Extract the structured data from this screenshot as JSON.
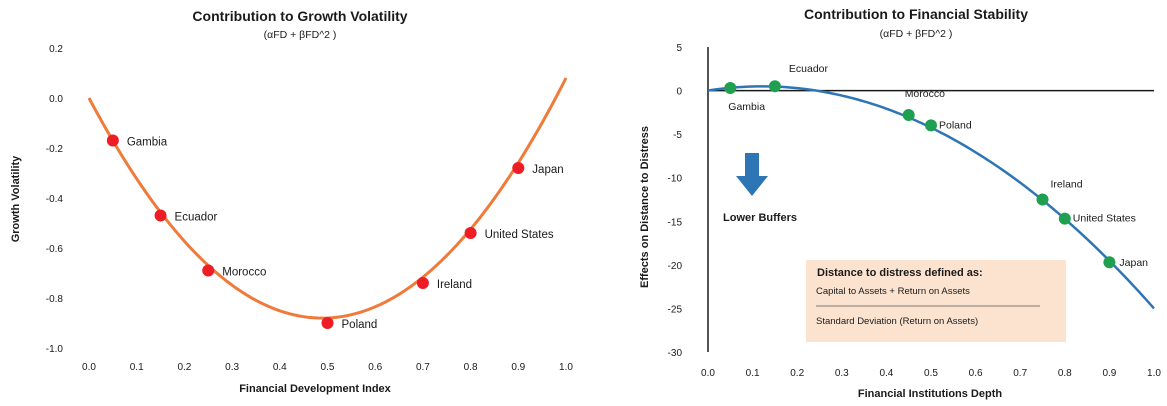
{
  "chart_data": [
    {
      "type": "line",
      "title": "Contribution to Growth Volatility",
      "subtitle": "(αFD + βFD^2 )",
      "xlabel": "Financial Development Index",
      "ylabel": "Growth Volatility",
      "xlim": [
        0.0,
        1.0
      ],
      "ylim": [
        -1.0,
        0.2
      ],
      "x_ticks": [
        "0.0",
        "0.1",
        "0.2",
        "0.3",
        "0.4",
        "0.5",
        "0.6",
        "0.7",
        "0.8",
        "0.9",
        "1.0"
      ],
      "y_ticks": [
        "-1.0",
        "-0.8",
        "-0.6",
        "-0.4",
        "-0.2",
        "0.0",
        "0.2"
      ],
      "line_color": "#f07a3a",
      "marker_color": "#ee1c25",
      "curve": {
        "a": -3.6,
        "b": 3.68
      },
      "points": [
        {
          "label": "Gambia",
          "x": 0.05,
          "y": -0.17
        },
        {
          "label": "Ecuador",
          "x": 0.15,
          "y": -0.47
        },
        {
          "label": "Morocco",
          "x": 0.25,
          "y": -0.69
        },
        {
          "label": "Poland",
          "x": 0.5,
          "y": -0.9
        },
        {
          "label": "Ireland",
          "x": 0.7,
          "y": -0.74
        },
        {
          "label": "United States",
          "x": 0.8,
          "y": -0.54
        },
        {
          "label": "Japan",
          "x": 0.9,
          "y": -0.28
        }
      ]
    },
    {
      "type": "line",
      "title": "Contribution to Financial Stability",
      "subtitle": "(αFD + βFD^2 )",
      "xlabel": "Financial Institutions Depth",
      "ylabel": "Effects on Distance to Distress",
      "xlim": [
        0.0,
        1.0
      ],
      "ylim": [
        -30,
        5
      ],
      "x_ticks": [
        "0.0",
        "0.1",
        "0.2",
        "0.3",
        "0.4",
        "0.5",
        "0.6",
        "0.7",
        "0.8",
        "0.9",
        "1.0"
      ],
      "y_ticks": [
        "-30",
        "-25",
        "-20",
        "-15",
        "-10",
        "-5",
        "0",
        "5"
      ],
      "line_color": "#2e75b6",
      "marker_color": "#1fa050",
      "curve": {
        "a": 8.0,
        "b": -33.0
      },
      "points": [
        {
          "label": "Gambia",
          "x": 0.05,
          "y": 0.3
        },
        {
          "label": "Ecuador",
          "x": 0.15,
          "y": 0.5
        },
        {
          "label": "Morocco",
          "x": 0.45,
          "y": -2.8
        },
        {
          "label": "Poland",
          "x": 0.5,
          "y": -4.0
        },
        {
          "label": "Ireland",
          "x": 0.75,
          "y": -12.5
        },
        {
          "label": "United States",
          "x": 0.8,
          "y": -14.7
        },
        {
          "label": "Japan",
          "x": 0.9,
          "y": -19.7
        }
      ],
      "annotations": {
        "arrow_label": "Lower Buffers",
        "arrow_color": "#2e75b6",
        "note_title": "Distance to distress defined as:",
        "note_numerator": "Capital to Assets + Return on Assets",
        "note_denominator": "Standard Deviation (Return on Assets)",
        "note_background": "#fbe3d0"
      }
    }
  ]
}
